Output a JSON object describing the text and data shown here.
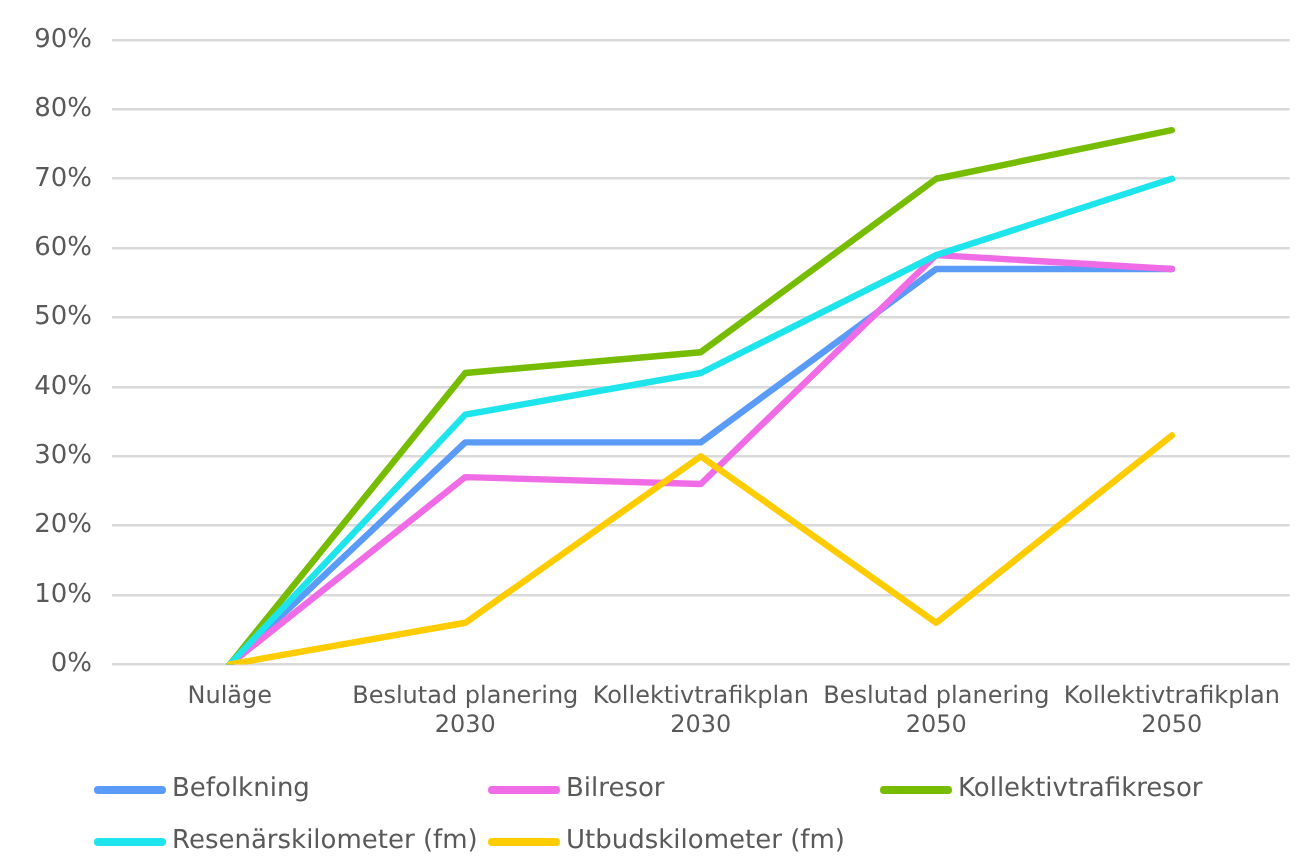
{
  "chart_data": {
    "type": "line",
    "categories": [
      "Nuläge",
      "Beslutad planering 2030",
      "Kollektivtrafikplan 2030",
      "Beslutad planering 2050",
      "Kollektivtrafikplan 2050"
    ],
    "series": [
      {
        "name": "Befolkning",
        "color": "#5b9bf8",
        "values": [
          0,
          32,
          32,
          57,
          57
        ]
      },
      {
        "name": "Bilresor",
        "color": "#f06ce6",
        "values": [
          0,
          27,
          26,
          59,
          57
        ]
      },
      {
        "name": "Kollektivtrafikresor",
        "color": "#76bc00",
        "values": [
          0,
          42,
          45,
          70,
          77
        ]
      },
      {
        "name": "Resenärskilometer (fm)",
        "color": "#1ee5ec",
        "values": [
          0,
          36,
          42,
          59,
          70
        ]
      },
      {
        "name": "Utbudskilometer (fm)",
        "color": "#ffcc00",
        "values": [
          0,
          6,
          30,
          6,
          33
        ]
      }
    ],
    "ylim": [
      0,
      90
    ],
    "yticks": [
      {
        "value": 0,
        "label": "0%"
      },
      {
        "value": 10,
        "label": "10%"
      },
      {
        "value": 20,
        "label": "20%"
      },
      {
        "value": 30,
        "label": "30%"
      },
      {
        "value": 40,
        "label": "40%"
      },
      {
        "value": 50,
        "label": "50%"
      },
      {
        "value": 60,
        "label": "60%"
      },
      {
        "value": 70,
        "label": "70%"
      },
      {
        "value": 80,
        "label": "80%"
      },
      {
        "value": 90,
        "label": "90%"
      }
    ],
    "grid": "y",
    "legend": "bottom",
    "marker": "none",
    "line_style": "solid"
  }
}
